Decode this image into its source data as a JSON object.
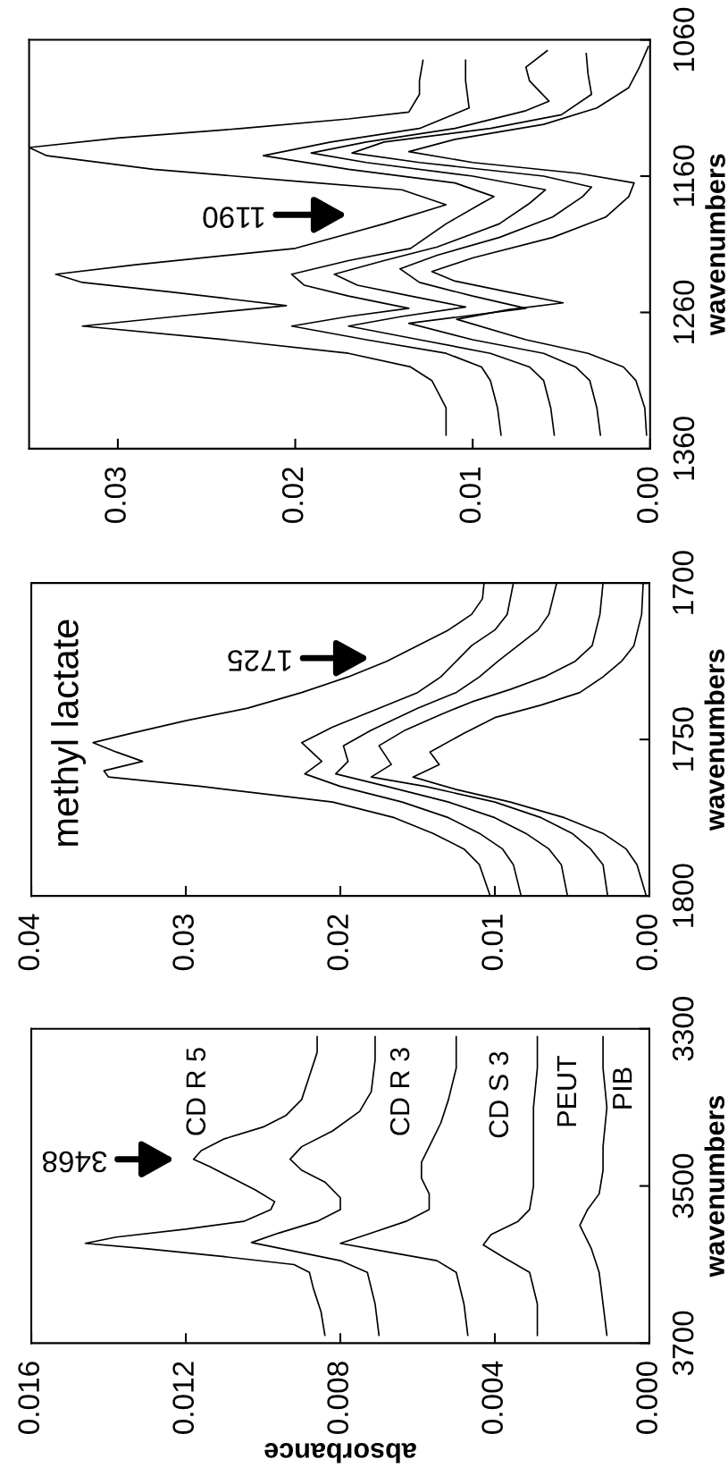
{
  "chart_data": [
    {
      "type": "line",
      "xlabel": "absorbance",
      "ylabel": "wavenumbers",
      "ylim": [
        3700,
        3300
      ],
      "yticks": [
        3700,
        3500,
        3300
      ],
      "xlim": [
        0.016,
        0
      ],
      "xticks": [
        {
          "value": 0,
          "label": "0.000"
        },
        {
          "value": 0.004,
          "label": "0.004"
        },
        {
          "value": 0.008,
          "label": "0.008"
        },
        {
          "value": 0.012,
          "label": "0.012"
        },
        {
          "value": 0.016,
          "label": "0.016"
        }
      ],
      "annotations": [
        "3468"
      ],
      "series": [
        {
          "name": "CD R 5",
          "color": "#000000",
          "values": [
            3690,
            3660,
            3630,
            3610,
            3600,
            3590,
            3580,
            3573,
            3565,
            3555,
            3545,
            3530,
            3520,
            3505,
            3490,
            3475,
            3466,
            3455,
            3440,
            3425,
            3410,
            3390,
            3360,
            3330,
            3310
          ],
          "x": [
            0.0084,
            0.0085,
            0.0087,
            0.0088,
            0.0092,
            0.011,
            0.013,
            0.0146,
            0.0138,
            0.012,
            0.0105,
            0.0098,
            0.0097,
            0.0102,
            0.0108,
            0.0114,
            0.0118,
            0.0116,
            0.011,
            0.01,
            0.0094,
            0.009,
            0.0088,
            0.0086,
            0.0086
          ]
        },
        {
          "name": "CD R 3",
          "color": "#000000",
          "values": [
            3690,
            3650,
            3610,
            3595,
            3580,
            3572,
            3560,
            3545,
            3530,
            3515,
            3495,
            3480,
            3466,
            3450,
            3430,
            3405,
            3380,
            3340,
            3310
          ],
          "x": [
            0.007,
            0.0071,
            0.0073,
            0.008,
            0.0095,
            0.0103,
            0.0096,
            0.0086,
            0.008,
            0.008,
            0.0084,
            0.009,
            0.0093,
            0.009,
            0.0082,
            0.0075,
            0.0072,
            0.0071,
            0.0071
          ]
        },
        {
          "name": "CD S 3",
          "color": "#000000",
          "values": [
            3690,
            3650,
            3610,
            3595,
            3582,
            3573,
            3560,
            3545,
            3530,
            3510,
            3490,
            3470,
            3450,
            3420,
            3390,
            3350,
            3310
          ],
          "x": [
            0.0047,
            0.0048,
            0.005,
            0.0055,
            0.007,
            0.008,
            0.0072,
            0.0063,
            0.0057,
            0.0057,
            0.0059,
            0.0059,
            0.0057,
            0.0054,
            0.0052,
            0.005,
            0.005
          ]
        },
        {
          "name": "PEUT",
          "color": "#000000",
          "values": [
            3690,
            3650,
            3610,
            3590,
            3575,
            3562,
            3545,
            3530,
            3500,
            3450,
            3400,
            3350,
            3310
          ],
          "x": [
            0.0029,
            0.0029,
            0.0031,
            0.0038,
            0.0043,
            0.0041,
            0.0034,
            0.0031,
            0.003,
            0.003,
            0.003,
            0.0029,
            0.0029
          ]
        },
        {
          "name": "PIB",
          "color": "#000000",
          "values": [
            3690,
            3650,
            3610,
            3580,
            3550,
            3530,
            3510,
            3480,
            3450,
            3400,
            3350,
            3310
          ],
          "x": [
            0.0011,
            0.0012,
            0.0013,
            0.0015,
            0.0018,
            0.0016,
            0.0013,
            0.0012,
            0.0012,
            0.0011,
            0.0012,
            0.0012
          ]
        }
      ]
    },
    {
      "type": "line",
      "ylabel": "wavenumbers",
      "ylim": [
        1800,
        1700
      ],
      "yticks": [
        1800,
        1750,
        1700
      ],
      "xlim": [
        0.04,
        0
      ],
      "xticks": [
        {
          "value": 0,
          "label": "0.00"
        },
        {
          "value": 0.01,
          "label": "0.01"
        },
        {
          "value": 0.02,
          "label": "0.02"
        },
        {
          "value": 0.03,
          "label": "0.03"
        },
        {
          "value": 0.04,
          "label": "0.04"
        }
      ],
      "annotations": [
        "methyl lactate",
        "1725"
      ],
      "series": [
        {
          "color": "#000000",
          "values": [
            1800,
            1790,
            1785,
            1780,
            1775,
            1770,
            1765,
            1762,
            1760,
            1757,
            1754,
            1751,
            1748,
            1744,
            1740,
            1735,
            1730,
            1725,
            1720,
            1715,
            1710,
            1705,
            1700
          ],
          "x": [
            0.0103,
            0.011,
            0.012,
            0.014,
            0.0165,
            0.0205,
            0.029,
            0.035,
            0.0353,
            0.0328,
            0.0345,
            0.036,
            0.0335,
            0.03,
            0.026,
            0.0225,
            0.0195,
            0.017,
            0.015,
            0.013,
            0.0115,
            0.0108,
            0.0107
          ]
        },
        {
          "color": "#000000",
          "values": [
            1800,
            1790,
            1785,
            1780,
            1775,
            1770,
            1765,
            1761,
            1757,
            1751,
            1746,
            1740,
            1735,
            1730,
            1725,
            1720,
            1715,
            1710,
            1700
          ],
          "x": [
            0.0083,
            0.0088,
            0.0095,
            0.011,
            0.013,
            0.016,
            0.02,
            0.0223,
            0.0212,
            0.0225,
            0.0205,
            0.0175,
            0.015,
            0.0135,
            0.0125,
            0.0115,
            0.01,
            0.0092,
            0.0088
          ]
        },
        {
          "color": "#000000",
          "values": [
            1800,
            1790,
            1785,
            1780,
            1775,
            1770,
            1765,
            1761,
            1757,
            1752,
            1747,
            1740,
            1735,
            1730,
            1725,
            1720,
            1715,
            1710,
            1700
          ],
          "x": [
            0.0053,
            0.0057,
            0.0065,
            0.008,
            0.01,
            0.013,
            0.017,
            0.0203,
            0.0195,
            0.0198,
            0.018,
            0.015,
            0.0125,
            0.011,
            0.0098,
            0.0085,
            0.0072,
            0.0065,
            0.006
          ]
        },
        {
          "color": "#000000",
          "values": [
            1800,
            1790,
            1785,
            1780,
            1775,
            1770,
            1765,
            1762,
            1758,
            1752,
            1747,
            1742,
            1738,
            1734,
            1730,
            1725,
            1720,
            1710,
            1700
          ],
          "x": [
            0.0027,
            0.003,
            0.0038,
            0.005,
            0.007,
            0.01,
            0.0145,
            0.018,
            0.0167,
            0.0175,
            0.0158,
            0.0135,
            0.0115,
            0.009,
            0.0068,
            0.0048,
            0.0037,
            0.0032,
            0.003
          ]
        },
        {
          "color": "#000000",
          "values": [
            1800,
            1790,
            1785,
            1780,
            1775,
            1770,
            1766,
            1762,
            1758,
            1754,
            1748,
            1743,
            1739,
            1735,
            1730,
            1725,
            1720,
            1710,
            1700
          ],
          "x": [
            0.0002,
            0.0008,
            0.0015,
            0.003,
            0.0055,
            0.009,
            0.0125,
            0.0153,
            0.0136,
            0.0142,
            0.012,
            0.01,
            0.007,
            0.0045,
            0.003,
            0.0018,
            0.001,
            0.0005,
            0.0004
          ]
        }
      ]
    },
    {
      "type": "line",
      "ylabel": "wavenumbers",
      "ylim": [
        1360,
        1060
      ],
      "yticks": [
        1360,
        1260,
        1160,
        1060
      ],
      "xlim": [
        0.035,
        0
      ],
      "xticks": [
        {
          "value": 0,
          "label": "0.00"
        },
        {
          "value": 0.01,
          "label": "0.01"
        },
        {
          "value": 0.02,
          "label": "0.02"
        },
        {
          "value": 0.03,
          "label": "0.03"
        }
      ],
      "annotations": [
        "1190"
      ],
      "series": [
        {
          "color": "#000000",
          "values": [
            1350,
            1330,
            1310,
            1300,
            1290,
            1280,
            1270,
            1262,
            1255,
            1245,
            1238,
            1232,
            1225,
            1213,
            1195,
            1181,
            1170,
            1164,
            1155,
            1145,
            1139,
            1132,
            1125,
            1118,
            1113,
            1100,
            1090,
            1075
          ],
          "x": [
            0.0115,
            0.0115,
            0.0123,
            0.0135,
            0.017,
            0.024,
            0.032,
            0.026,
            0.0205,
            0.027,
            0.032,
            0.0335,
            0.029,
            0.02,
            0.015,
            0.0115,
            0.014,
            0.0197,
            0.028,
            0.034,
            0.035,
            0.03,
            0.023,
            0.017,
            0.0136,
            0.013,
            0.013,
            0.0128
          ]
        },
        {
          "color": "#000000",
          "values": [
            1350,
            1330,
            1310,
            1300,
            1290,
            1280,
            1270,
            1263,
            1257,
            1248,
            1240,
            1232,
            1222,
            1213,
            1195,
            1180,
            1175,
            1165,
            1155,
            1145,
            1135,
            1125,
            1110,
            1090,
            1075
          ],
          "x": [
            0.0084,
            0.0086,
            0.009,
            0.0095,
            0.0115,
            0.016,
            0.0202,
            0.017,
            0.0136,
            0.017,
            0.0195,
            0.0202,
            0.017,
            0.0135,
            0.0115,
            0.0095,
            0.0088,
            0.011,
            0.017,
            0.0218,
            0.018,
            0.013,
            0.0102,
            0.0104,
            0.0104
          ]
        },
        {
          "color": "#000000",
          "values": [
            1350,
            1330,
            1310,
            1300,
            1290,
            1280,
            1270,
            1263,
            1256,
            1248,
            1240,
            1232,
            1222,
            1212,
            1195,
            1180,
            1170,
            1160,
            1150,
            1143,
            1135,
            1125,
            1112,
            1105,
            1090,
            1080,
            1068
          ],
          "x": [
            0.0054,
            0.0056,
            0.006,
            0.0068,
            0.009,
            0.013,
            0.017,
            0.014,
            0.0104,
            0.0135,
            0.0165,
            0.0178,
            0.015,
            0.012,
            0.0085,
            0.0068,
            0.0059,
            0.01,
            0.016,
            0.0191,
            0.016,
            0.011,
            0.007,
            0.0057,
            0.0068,
            0.007,
            0.0058
          ]
        },
        {
          "color": "#000000",
          "values": [
            1350,
            1330,
            1310,
            1300,
            1290,
            1280,
            1268,
            1262,
            1257,
            1248,
            1238,
            1228,
            1218,
            1205,
            1190,
            1175,
            1168,
            1160,
            1150,
            1143,
            1135,
            1125,
            1115,
            1100,
            1085,
            1070
          ],
          "x": [
            0.0028,
            0.003,
            0.0034,
            0.0042,
            0.006,
            0.01,
            0.0136,
            0.01,
            0.007,
            0.01,
            0.013,
            0.0141,
            0.012,
            0.0085,
            0.0055,
            0.0038,
            0.0033,
            0.006,
            0.013,
            0.0168,
            0.015,
            0.009,
            0.005,
            0.0033,
            0.0035,
            0.0036
          ]
        },
        {
          "color": "#000000",
          "values": [
            1350,
            1330,
            1310,
            1300,
            1290,
            1280,
            1265,
            1258,
            1253,
            1245,
            1237,
            1230,
            1220,
            1205,
            1190,
            1175,
            1165,
            1158,
            1150,
            1142,
            1133,
            1122,
            1110,
            1095,
            1080,
            1065
          ],
          "x": [
            0.0002,
            0.0003,
            0.0008,
            0.0015,
            0.0035,
            0.007,
            0.0109,
            0.008,
            0.0049,
            0.008,
            0.011,
            0.0123,
            0.01,
            0.0055,
            0.0025,
            0.0012,
            0.0009,
            0.004,
            0.01,
            0.0136,
            0.011,
            0.006,
            0.003,
            0.0012,
            0.0006,
            0.0001
          ]
        }
      ]
    }
  ]
}
